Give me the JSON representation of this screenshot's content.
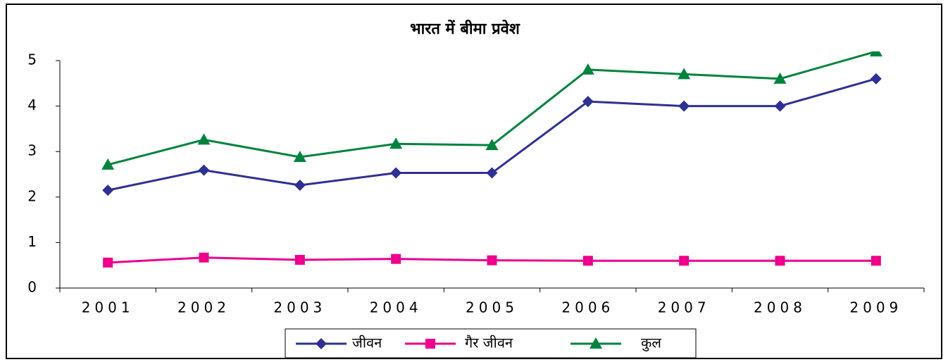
{
  "chart_data": {
    "type": "line",
    "title": "भारत में बीमा प्रवेश",
    "categories": [
      "2001",
      "2002",
      "2003",
      "2004",
      "2005",
      "2006",
      "2007",
      "2008",
      "2009"
    ],
    "series": [
      {
        "name": "जीवन",
        "color": "#2e3192",
        "marker": "diamond",
        "values": [
          2.15,
          2.59,
          2.26,
          2.53,
          2.53,
          4.1,
          4.0,
          4.0,
          4.6
        ]
      },
      {
        "name": "गैर जीवन",
        "color": "#ec008c",
        "marker": "square",
        "values": [
          0.56,
          0.67,
          0.62,
          0.64,
          0.61,
          0.6,
          0.6,
          0.6,
          0.6
        ]
      },
      {
        "name": "कुल",
        "color": "#00833e",
        "marker": "triangle",
        "values": [
          2.71,
          3.26,
          2.88,
          3.17,
          3.14,
          4.8,
          4.7,
          4.6,
          5.2
        ]
      }
    ],
    "ylim": [
      0,
      5
    ],
    "yticks": [
      0,
      1,
      2,
      3,
      4,
      5
    ],
    "grid": false,
    "legend": "bottom"
  }
}
